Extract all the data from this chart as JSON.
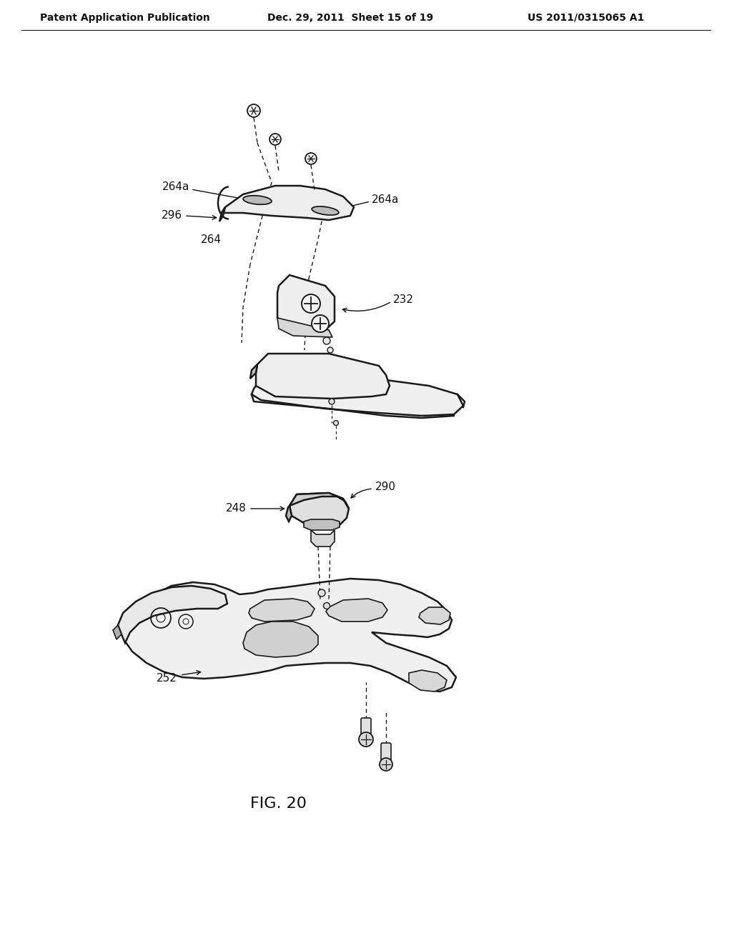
{
  "background_color": "#ffffff",
  "header_left": "Patent Application Publication",
  "header_center": "Dec. 29, 2011  Sheet 15 of 19",
  "header_right": "US 2011/0315065 A1",
  "figure_label": "FIG. 20",
  "labels": {
    "264a_left": "264a",
    "264a_right": "264a",
    "296": "296",
    "264": "264",
    "232": "232",
    "248": "248",
    "290": "290",
    "252": "252"
  },
  "line_color": "#1a1a1a",
  "text_color": "#111111",
  "header_fontsize": 10,
  "label_fontsize": 11,
  "figure_label_fontsize": 16
}
